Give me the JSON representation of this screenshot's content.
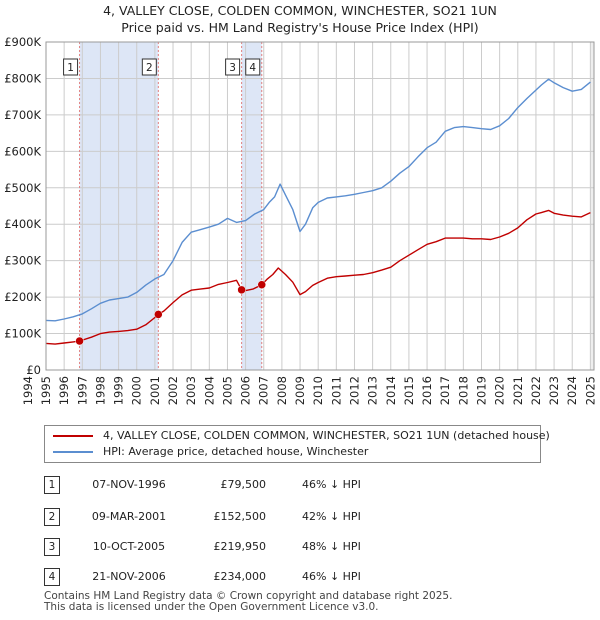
{
  "title_line1": "4, VALLEY CLOSE, COLDEN COMMON, WINCHESTER, SO21 1UN",
  "title_line2": "Price paid vs. HM Land Registry's House Price Index (HPI)",
  "colors": {
    "red": "#c00000",
    "blue": "#5b8ed0",
    "shade": "#dde6f6",
    "grid": "#cccccc",
    "vline": "#e08080"
  },
  "chart_data": {
    "type": "line",
    "xlim": [
      1995,
      2025.2
    ],
    "ylim": [
      0,
      900000
    ],
    "y_ticks": [
      {
        "v": 0,
        "label": "£0"
      },
      {
        "v": 100000,
        "label": "£100K"
      },
      {
        "v": 200000,
        "label": "£200K"
      },
      {
        "v": 300000,
        "label": "£300K"
      },
      {
        "v": 400000,
        "label": "£400K"
      },
      {
        "v": 500000,
        "label": "£500K"
      },
      {
        "v": 600000,
        "label": "£600K"
      },
      {
        "v": 700000,
        "label": "£700K"
      },
      {
        "v": 800000,
        "label": "£800K"
      },
      {
        "v": 900000,
        "label": "£900K"
      }
    ],
    "x_ticks": [
      "1994",
      "1995",
      "1996",
      "1997",
      "1998",
      "1999",
      "2000",
      "2001",
      "2002",
      "2003",
      "2004",
      "2005",
      "2006",
      "2007",
      "2008",
      "2009",
      "2010",
      "2011",
      "2012",
      "2013",
      "2014",
      "2015",
      "2016",
      "2017",
      "2018",
      "2019",
      "2020",
      "2021",
      "2022",
      "2023",
      "2024",
      "2025"
    ],
    "shaded_ranges": [
      [
        1996.85,
        2001.19
      ],
      [
        2005.78,
        2006.89
      ]
    ],
    "series": [
      {
        "name": "4, VALLEY CLOSE, COLDEN COMMON, WINCHESTER, SO21 1UN (detached house)",
        "color": "#c00000",
        "x": [
          1995.0,
          1995.5,
          1996.0,
          1996.5,
          1996.85,
          1997.5,
          1998.0,
          1998.5,
          1999.0,
          1999.5,
          2000.0,
          2000.5,
          2001.0,
          2001.19,
          2001.5,
          2002.0,
          2002.5,
          2003.0,
          2003.5,
          2004.0,
          2004.5,
          2005.0,
          2005.5,
          2005.78,
          2006.0,
          2006.4,
          2006.89,
          2007.2,
          2007.5,
          2007.8,
          2008.2,
          2008.6,
          2009.0,
          2009.3,
          2009.7,
          2010.0,
          2010.5,
          2011.0,
          2011.5,
          2012.0,
          2012.5,
          2013.0,
          2013.5,
          2014.0,
          2014.5,
          2015.0,
          2015.5,
          2016.0,
          2016.5,
          2017.0,
          2017.5,
          2018.0,
          2018.5,
          2019.0,
          2019.5,
          2020.0,
          2020.5,
          2021.0,
          2021.5,
          2022.0,
          2022.3,
          2022.7,
          2023.0,
          2023.5,
          2024.0,
          2024.5,
          2025.0
        ],
        "y": [
          73000,
          71000,
          74000,
          77000,
          79500,
          90000,
          100000,
          104000,
          106000,
          108000,
          112000,
          124000,
          144000,
          152500,
          162000,
          185000,
          206000,
          219000,
          222000,
          225000,
          235000,
          240000,
          246000,
          219950,
          218000,
          222000,
          234000,
          250000,
          262000,
          280000,
          262000,
          241000,
          207000,
          215000,
          232000,
          240000,
          252000,
          256000,
          258000,
          260000,
          262000,
          267000,
          274000,
          282000,
          300000,
          315000,
          330000,
          345000,
          352000,
          362000,
          362000,
          362000,
          360000,
          360000,
          358000,
          365000,
          375000,
          390000,
          412000,
          428000,
          432000,
          438000,
          430000,
          425000,
          422000,
          420000,
          432000
        ]
      },
      {
        "name": "HPI: Average price, detached house, Winchester",
        "color": "#5b8ed0",
        "x": [
          1995.0,
          1995.5,
          1996.0,
          1996.5,
          1997.0,
          1997.5,
          1998.0,
          1998.5,
          1999.0,
          1999.5,
          2000.0,
          2000.5,
          2001.0,
          2001.5,
          2002.0,
          2002.5,
          2003.0,
          2003.5,
          2004.0,
          2004.5,
          2005.0,
          2005.5,
          2006.0,
          2006.5,
          2007.0,
          2007.3,
          2007.6,
          2007.9,
          2008.2,
          2008.6,
          2009.0,
          2009.3,
          2009.7,
          2010.0,
          2010.5,
          2011.0,
          2011.5,
          2012.0,
          2012.5,
          2013.0,
          2013.5,
          2014.0,
          2014.5,
          2015.0,
          2015.5,
          2016.0,
          2016.5,
          2017.0,
          2017.5,
          2018.0,
          2018.5,
          2019.0,
          2019.5,
          2020.0,
          2020.5,
          2021.0,
          2021.5,
          2022.0,
          2022.3,
          2022.7,
          2023.0,
          2023.5,
          2024.0,
          2024.5,
          2025.0
        ],
        "y": [
          136000,
          135000,
          140000,
          146000,
          154000,
          168000,
          183000,
          192000,
          196000,
          200000,
          213000,
          233000,
          250000,
          262000,
          300000,
          350000,
          378000,
          385000,
          392000,
          400000,
          416000,
          405000,
          410000,
          428000,
          440000,
          460000,
          475000,
          510000,
          480000,
          440000,
          380000,
          400000,
          445000,
          460000,
          472000,
          475000,
          478000,
          482000,
          487000,
          492000,
          500000,
          518000,
          540000,
          558000,
          585000,
          610000,
          625000,
          655000,
          665000,
          668000,
          665000,
          662000,
          660000,
          670000,
          690000,
          720000,
          745000,
          768000,
          782000,
          798000,
          788000,
          775000,
          765000,
          770000,
          790000
        ]
      }
    ],
    "sales": [
      {
        "label": "1",
        "x": 1996.85,
        "y": 79500
      },
      {
        "label": "2",
        "x": 2001.19,
        "y": 152500
      },
      {
        "label": "3",
        "x": 2005.78,
        "y": 219950
      },
      {
        "label": "4",
        "x": 2006.89,
        "y": 234000
      }
    ]
  },
  "legend": {
    "red_label": "4, VALLEY CLOSE, COLDEN COMMON, WINCHESTER, SO21 1UN (detached house)",
    "blue_label": "HPI: Average price, detached house, Winchester"
  },
  "transactions": [
    {
      "num": "1",
      "date": "07-NOV-1996",
      "price": "£79,500",
      "hpi": "46% ↓ HPI"
    },
    {
      "num": "2",
      "date": "09-MAR-2001",
      "price": "£152,500",
      "hpi": "42% ↓ HPI"
    },
    {
      "num": "3",
      "date": "10-OCT-2005",
      "price": "£219,950",
      "hpi": "48% ↓ HPI"
    },
    {
      "num": "4",
      "date": "21-NOV-2006",
      "price": "£234,000",
      "hpi": "46% ↓ HPI"
    }
  ],
  "footer": {
    "line1": "Contains HM Land Registry data © Crown copyright and database right 2025.",
    "line2": "This data is licensed under the Open Government Licence v3.0."
  }
}
